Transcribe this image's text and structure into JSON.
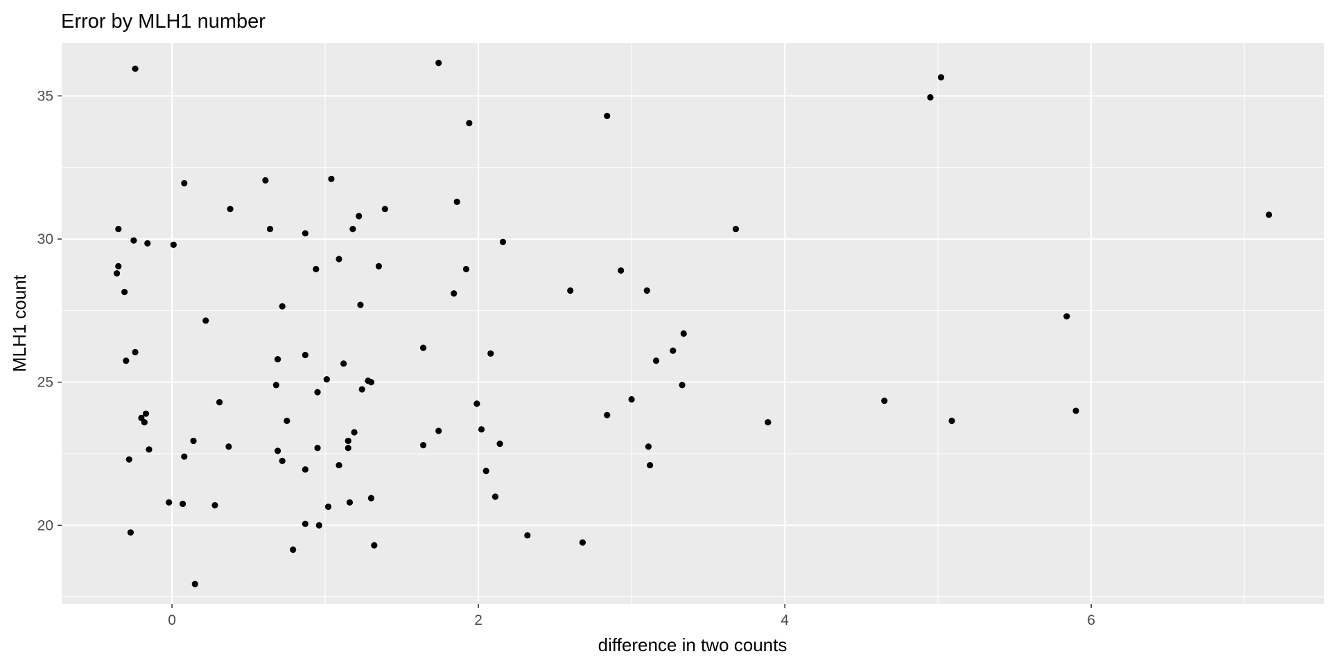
{
  "chart_data": {
    "type": "scatter",
    "title": "Error by MLH1 number",
    "xlabel": "difference in two counts",
    "ylabel": "MLH1 count",
    "xlim": [
      -0.72,
      7.52
    ],
    "ylim": [
      17.25,
      36.85
    ],
    "x_ticks": [
      0,
      2,
      4,
      6
    ],
    "y_ticks": [
      20,
      25,
      30,
      35
    ],
    "grid": true,
    "colors": {
      "panel_background": "#ebebeb",
      "grid_major": "#ffffff",
      "point": "#000000",
      "tick_label": "#4d4d4d",
      "text": "#000000"
    },
    "points": [
      {
        "x": -0.24,
        "y": 35.95
      },
      {
        "x": 1.74,
        "y": 36.15
      },
      {
        "x": 1.94,
        "y": 34.05
      },
      {
        "x": 2.84,
        "y": 34.3
      },
      {
        "x": 4.95,
        "y": 34.95
      },
      {
        "x": 5.02,
        "y": 35.65
      },
      {
        "x": 0.08,
        "y": 31.95
      },
      {
        "x": 0.61,
        "y": 32.05
      },
      {
        "x": 1.04,
        "y": 32.1
      },
      {
        "x": 0.38,
        "y": 31.05
      },
      {
        "x": 1.39,
        "y": 31.05
      },
      {
        "x": 1.86,
        "y": 31.3
      },
      {
        "x": -0.35,
        "y": 30.35
      },
      {
        "x": -0.25,
        "y": 29.95
      },
      {
        "x": -0.16,
        "y": 29.85
      },
      {
        "x": 0.01,
        "y": 29.8
      },
      {
        "x": 0.64,
        "y": 30.35
      },
      {
        "x": 0.87,
        "y": 30.2
      },
      {
        "x": 1.18,
        "y": 30.35
      },
      {
        "x": 1.22,
        "y": 30.8
      },
      {
        "x": 2.16,
        "y": 29.9
      },
      {
        "x": 3.68,
        "y": 30.35
      },
      {
        "x": 7.16,
        "y": 30.85
      },
      {
        "x": -0.35,
        "y": 29.05
      },
      {
        "x": -0.36,
        "y": 28.8
      },
      {
        "x": -0.31,
        "y": 28.15
      },
      {
        "x": 0.94,
        "y": 28.95
      },
      {
        "x": 1.09,
        "y": 29.3
      },
      {
        "x": 1.35,
        "y": 29.05
      },
      {
        "x": 1.84,
        "y": 28.1
      },
      {
        "x": 1.92,
        "y": 28.95
      },
      {
        "x": 2.6,
        "y": 28.2
      },
      {
        "x": 2.93,
        "y": 28.9
      },
      {
        "x": 3.1,
        "y": 28.2
      },
      {
        "x": 0.72,
        "y": 27.65
      },
      {
        "x": 1.23,
        "y": 27.7
      },
      {
        "x": 0.22,
        "y": 27.15
      },
      {
        "x": 5.84,
        "y": 27.3
      },
      {
        "x": -0.24,
        "y": 26.05
      },
      {
        "x": -0.3,
        "y": 25.75
      },
      {
        "x": 0.69,
        "y": 25.8
      },
      {
        "x": 0.87,
        "y": 25.95
      },
      {
        "x": 1.12,
        "y": 25.65
      },
      {
        "x": 1.64,
        "y": 26.2
      },
      {
        "x": 2.08,
        "y": 26.0
      },
      {
        "x": 3.16,
        "y": 25.75
      },
      {
        "x": 3.27,
        "y": 26.1
      },
      {
        "x": 3.34,
        "y": 26.7
      },
      {
        "x": 0.68,
        "y": 24.9
      },
      {
        "x": 0.95,
        "y": 24.65
      },
      {
        "x": 1.01,
        "y": 25.1
      },
      {
        "x": 1.24,
        "y": 24.75
      },
      {
        "x": 1.28,
        "y": 25.05
      },
      {
        "x": 1.3,
        "y": 25.0
      },
      {
        "x": 3.33,
        "y": 24.9
      },
      {
        "x": 0.31,
        "y": 24.3
      },
      {
        "x": 1.99,
        "y": 24.25
      },
      {
        "x": 3.0,
        "y": 24.4
      },
      {
        "x": 4.65,
        "y": 24.35
      },
      {
        "x": -0.2,
        "y": 23.75
      },
      {
        "x": -0.17,
        "y": 23.9
      },
      {
        "x": -0.18,
        "y": 23.6
      },
      {
        "x": 0.75,
        "y": 23.65
      },
      {
        "x": 2.84,
        "y": 23.85
      },
      {
        "x": 3.89,
        "y": 23.6
      },
      {
        "x": 5.09,
        "y": 23.65
      },
      {
        "x": 5.9,
        "y": 24.0
      },
      {
        "x": 0.14,
        "y": 22.95
      },
      {
        "x": 1.15,
        "y": 22.95
      },
      {
        "x": 1.19,
        "y": 23.25
      },
      {
        "x": 1.74,
        "y": 23.3
      },
      {
        "x": 2.02,
        "y": 23.35
      },
      {
        "x": -0.15,
        "y": 22.65
      },
      {
        "x": 0.37,
        "y": 22.75
      },
      {
        "x": 0.69,
        "y": 22.6
      },
      {
        "x": 0.95,
        "y": 22.7
      },
      {
        "x": 1.15,
        "y": 22.7
      },
      {
        "x": 1.64,
        "y": 22.8
      },
      {
        "x": 2.14,
        "y": 22.85
      },
      {
        "x": 3.11,
        "y": 22.75
      },
      {
        "x": -0.28,
        "y": 22.3
      },
      {
        "x": 0.08,
        "y": 22.4
      },
      {
        "x": 0.72,
        "y": 22.25
      },
      {
        "x": 0.87,
        "y": 21.95
      },
      {
        "x": 1.09,
        "y": 22.1
      },
      {
        "x": 2.05,
        "y": 21.9
      },
      {
        "x": 3.12,
        "y": 22.1
      },
      {
        "x": 2.11,
        "y": 21.0
      },
      {
        "x": -0.02,
        "y": 20.8
      },
      {
        "x": 0.07,
        "y": 20.75
      },
      {
        "x": 0.28,
        "y": 20.7
      },
      {
        "x": 1.02,
        "y": 20.65
      },
      {
        "x": 1.16,
        "y": 20.8
      },
      {
        "x": 1.3,
        "y": 20.95
      },
      {
        "x": 0.87,
        "y": 20.05
      },
      {
        "x": 0.96,
        "y": 20.0
      },
      {
        "x": -0.27,
        "y": 19.75
      },
      {
        "x": 0.79,
        "y": 19.15
      },
      {
        "x": 1.32,
        "y": 19.3
      },
      {
        "x": 2.32,
        "y": 19.65
      },
      {
        "x": 2.68,
        "y": 19.4
      },
      {
        "x": 0.15,
        "y": 17.95
      }
    ]
  }
}
